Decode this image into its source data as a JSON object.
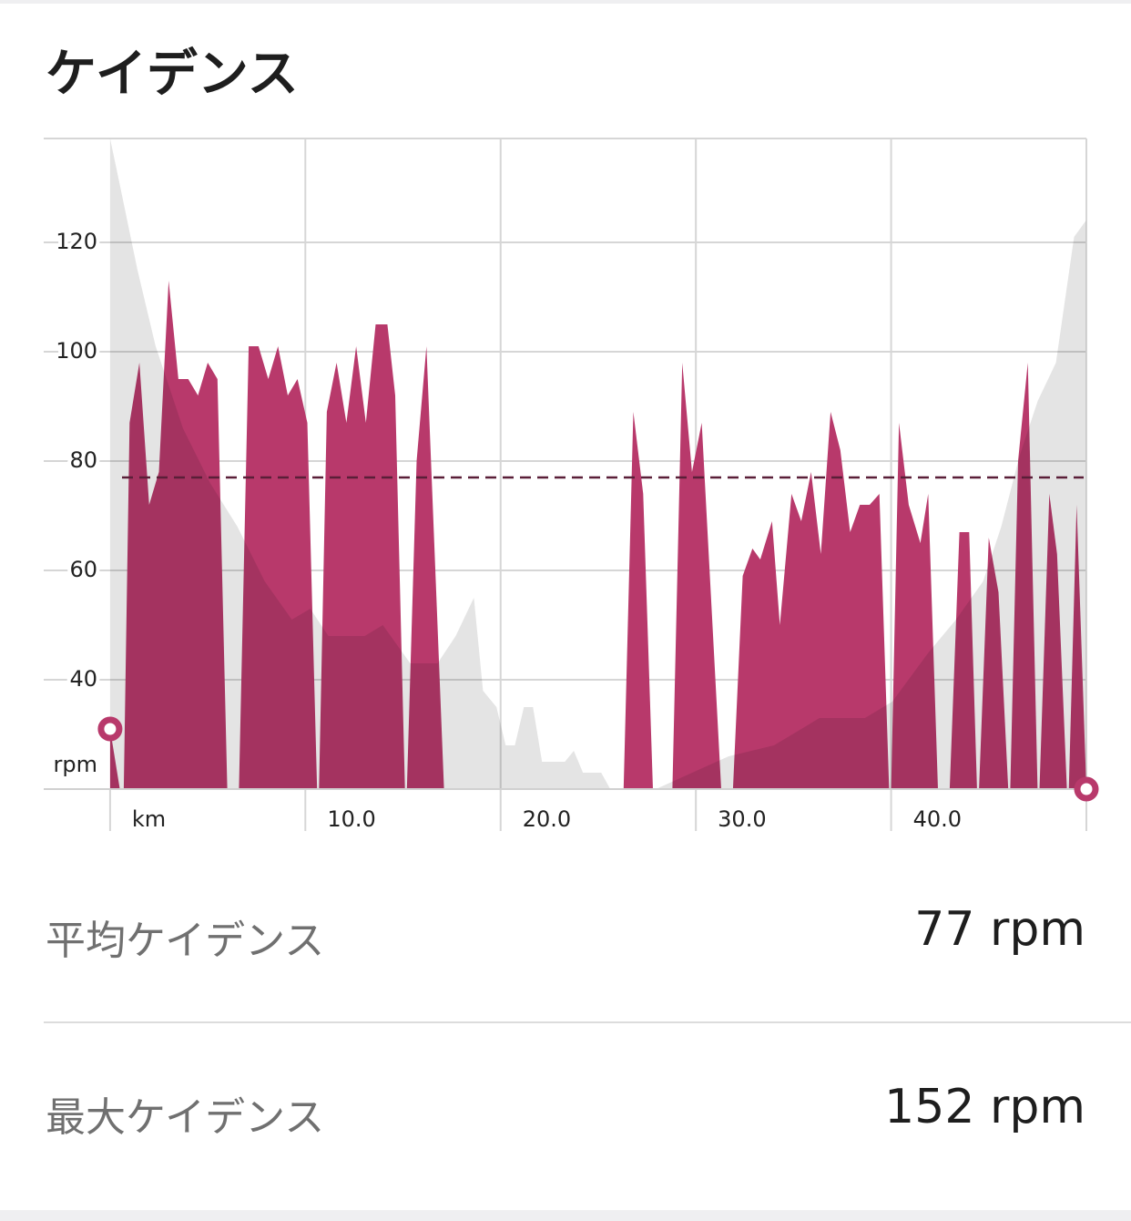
{
  "header": {
    "title": "ケイデンス"
  },
  "chart_data": {
    "type": "area",
    "xlim": [
      -3.4,
      50
    ],
    "ylim": [
      20,
      139
    ],
    "xticks": [
      {
        "value": 0,
        "label": "km"
      },
      {
        "value": 10,
        "label": "10.0"
      },
      {
        "value": 20,
        "label": "20.0"
      },
      {
        "value": 30,
        "label": "30.0"
      },
      {
        "value": 40,
        "label": "40.0"
      }
    ],
    "yticks": [
      40,
      60,
      80,
      100,
      120
    ],
    "y_unit": "rpm",
    "grid": true,
    "average": 77,
    "average_color": "#5a1f38",
    "series": [
      {
        "color": "#b8396b",
        "x": [
          0,
          0.5,
          null,
          0.7,
          1.0,
          1.5,
          2.0,
          2.5,
          3.0,
          3.5,
          4.0,
          4.5,
          5.0,
          5.5,
          6.0,
          null,
          6.6,
          7.1,
          7.6,
          8.1,
          8.6,
          9.1,
          9.6,
          10.1,
          10.6,
          null,
          10.7,
          11.1,
          11.6,
          12.1,
          12.6,
          13.1,
          13.6,
          14.2,
          14.6,
          15.1,
          null,
          15.2,
          15.7,
          16.2,
          17.1,
          null,
          26.3,
          26.8,
          27.3,
          27.8,
          null,
          28.8,
          29.3,
          29.8,
          30.3,
          31.3,
          null,
          31.9,
          32.4,
          32.9,
          33.3,
          33.9,
          34.3,
          34.9,
          35.4,
          35.9,
          36.4,
          36.9,
          37.4,
          37.9,
          38.4,
          38.9,
          39.4,
          39.9,
          null,
          40.0,
          40.4,
          40.9,
          41.5,
          41.9,
          42.4,
          null,
          43.0,
          43.5,
          44.0,
          44.4,
          null,
          44.5,
          45.0,
          45.5,
          46.0,
          null,
          46.1,
          46.5,
          47.0,
          47.5,
          null,
          47.6,
          48.1,
          48.5,
          49.0,
          null,
          49.1,
          49.5,
          50
        ],
        "values": [
          31,
          20,
          null,
          20,
          87,
          98,
          72,
          78,
          113,
          95,
          95,
          92,
          98,
          95,
          20,
          null,
          20,
          101,
          101,
          95,
          101,
          92,
          95,
          87,
          20,
          null,
          20,
          89,
          98,
          87,
          101,
          87,
          105,
          105,
          92,
          20,
          null,
          20,
          80,
          101,
          20,
          null,
          20,
          89,
          74,
          20,
          null,
          20,
          98,
          78,
          87,
          20,
          null,
          20,
          59,
          64,
          62,
          69,
          50,
          74,
          69,
          78,
          63,
          89,
          82,
          67,
          72,
          72,
          74,
          20,
          null,
          20,
          87,
          72,
          65,
          74,
          20,
          null,
          20,
          67,
          67,
          20,
          null,
          20,
          66,
          56,
          20,
          null,
          20,
          80,
          98,
          20,
          null,
          20,
          74,
          63,
          20,
          null,
          20,
          72,
          20
        ]
      },
      {
        "color": "#e4e4e4",
        "x": [
          0,
          0.47,
          1.4,
          2.33,
          3.73,
          5.12,
          6.52,
          7.92,
          9.31,
          10.25,
          11.18,
          13.04,
          13.97,
          15.37,
          16.77,
          17.7,
          18.63,
          19.1,
          19.79,
          20.26,
          20.73,
          21.19,
          21.66,
          22.12,
          23.29,
          23.75,
          24.22,
          25.15,
          25.62,
          27.95,
          29.81,
          31.68,
          34.0,
          36.33,
          38.66,
          40.06,
          41.92,
          43.32,
          44.71,
          45.64,
          46.58,
          47.51,
          48.44,
          49.37,
          49.98
        ],
        "values": [
          139,
          131,
          115,
          101,
          86,
          76,
          68,
          58,
          51,
          53,
          48,
          48,
          50,
          43,
          43,
          48,
          55,
          38,
          35,
          28,
          28,
          35,
          35,
          25,
          25,
          27,
          23,
          23,
          20,
          20,
          23,
          26,
          28,
          33,
          33,
          36,
          45,
          51,
          58,
          68,
          81,
          91,
          98,
          121,
          124
        ]
      }
    ],
    "markers": [
      {
        "x": 0,
        "y": 31
      },
      {
        "x": 50,
        "y": 20
      }
    ],
    "marker_color": "#b8396b"
  },
  "stats": [
    {
      "label": "平均ケイデンス",
      "value": "77 rpm"
    },
    {
      "label": "最大ケイデンス",
      "value": "152 rpm"
    }
  ]
}
